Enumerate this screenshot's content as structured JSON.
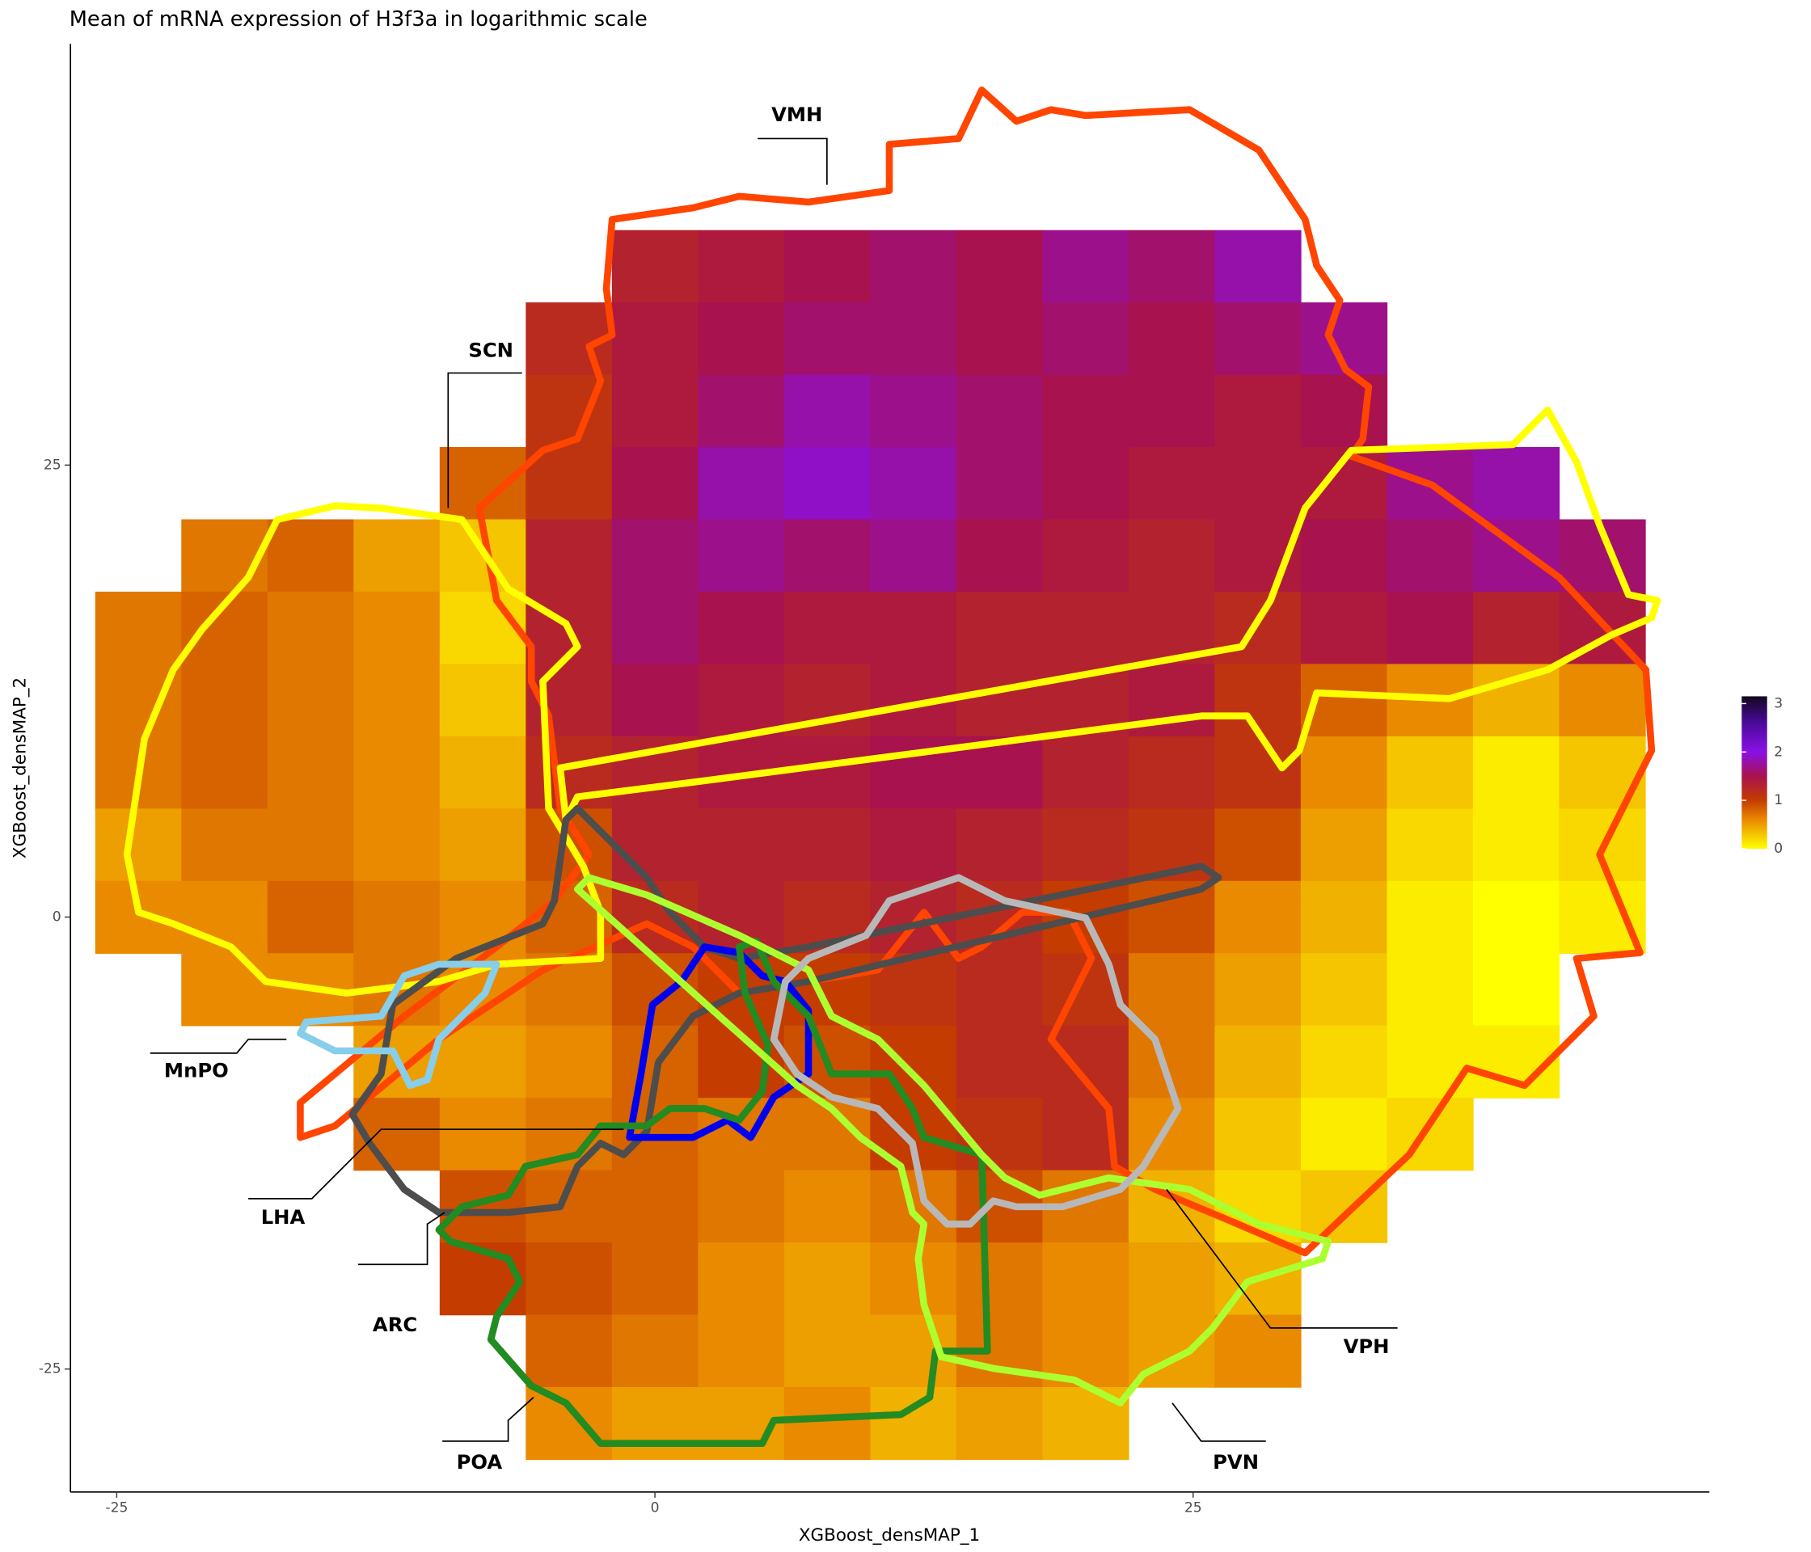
{
  "chart_data": {
    "type": "hexbin",
    "title": "Mean of mRNA expression of H3f3a in logarithmic scale",
    "x_label": "XGBoost_densMAP_1",
    "y_label": "XGBoost_densMAP_2",
    "xlim": [
      -27.15,
      48.98
    ],
    "ylim": [
      -31.8,
      48.3
    ],
    "xticks": [
      -25,
      0,
      25
    ],
    "yticks": [
      -25,
      0,
      25
    ],
    "x": [
      -24,
      -20,
      -16,
      -12,
      -8,
      -4,
      0,
      4,
      8,
      12,
      16,
      20,
      24,
      28,
      32,
      36,
      40,
      44
    ],
    "y": [
      36,
      32,
      28,
      24,
      20,
      16,
      12,
      8,
      4,
      0,
      -4,
      -8,
      -12,
      -16,
      -20,
      -24,
      -28
    ],
    "values": [
      [
        null,
        null,
        null,
        null,
        null,
        null,
        1.3,
        1.4,
        1.5,
        1.6,
        1.5,
        1.7,
        1.6,
        1.8,
        null,
        null,
        null,
        null
      ],
      [
        null,
        null,
        null,
        null,
        null,
        1.2,
        1.4,
        1.5,
        1.6,
        1.6,
        1.5,
        1.6,
        1.5,
        1.6,
        1.7,
        null,
        null,
        null
      ],
      [
        null,
        null,
        null,
        null,
        null,
        1.1,
        1.4,
        1.6,
        1.8,
        1.7,
        1.6,
        1.5,
        1.5,
        1.4,
        1.5,
        null,
        null,
        null
      ],
      [
        null,
        null,
        null,
        null,
        0.8,
        1.1,
        1.5,
        1.8,
        1.9,
        1.8,
        1.6,
        1.5,
        1.4,
        1.4,
        1.4,
        1.7,
        1.8,
        null
      ],
      [
        null,
        0.7,
        0.8,
        0.5,
        0.3,
        1.3,
        1.6,
        1.7,
        1.6,
        1.7,
        1.5,
        1.4,
        1.3,
        1.4,
        1.5,
        1.6,
        1.7,
        1.6
      ],
      [
        0.7,
        0.8,
        0.7,
        0.6,
        0.2,
        1.3,
        1.6,
        1.5,
        1.4,
        1.4,
        1.3,
        1.3,
        1.3,
        1.2,
        1.4,
        1.5,
        1.3,
        1.4
      ],
      [
        0.7,
        0.8,
        0.7,
        0.6,
        0.3,
        1.3,
        1.5,
        1.4,
        1.3,
        1.4,
        1.3,
        1.3,
        1.4,
        1.1,
        0.8,
        0.6,
        0.4,
        0.6
      ],
      [
        0.7,
        0.8,
        0.7,
        0.6,
        0.4,
        1.2,
        1.3,
        1.4,
        1.4,
        1.5,
        1.5,
        1.3,
        1.2,
        1.1,
        0.6,
        0.3,
        0.1,
        0.3
      ],
      [
        0.5,
        0.7,
        0.7,
        0.6,
        0.5,
        0.9,
        1.3,
        1.3,
        1.3,
        1.4,
        1.3,
        1.2,
        1.1,
        0.9,
        0.5,
        0.2,
        0.1,
        0.2
      ],
      [
        0.6,
        0.6,
        0.8,
        0.7,
        0.6,
        0.8,
        1.2,
        1.3,
        1.2,
        1.3,
        1.2,
        1.0,
        0.9,
        0.6,
        0.4,
        0.1,
        0,
        0.1
      ],
      [
        null,
        0.6,
        0.6,
        0.7,
        0.6,
        0.7,
        0.9,
        1.0,
        1.0,
        1.1,
        1.2,
        1.1,
        0.7,
        0.5,
        0.3,
        0.1,
        0,
        null
      ],
      [
        null,
        null,
        null,
        0.5,
        0.5,
        0.6,
        0.8,
        1.0,
        0.9,
        1.0,
        1.2,
        1.2,
        0.7,
        0.4,
        0.2,
        0.1,
        0.1,
        null
      ],
      [
        null,
        null,
        null,
        0.8,
        0.6,
        0.7,
        0.8,
        0.7,
        0.7,
        1.0,
        1.1,
        1.2,
        0.6,
        0.3,
        0.1,
        0.2,
        null,
        null
      ],
      [
        null,
        null,
        null,
        null,
        0.9,
        0.8,
        0.8,
        0.7,
        0.6,
        0.7,
        0.9,
        0.7,
        0.4,
        0.2,
        0.3,
        null,
        null,
        null
      ],
      [
        null,
        null,
        null,
        null,
        1.0,
        0.9,
        0.8,
        0.6,
        0.5,
        0.6,
        0.7,
        0.6,
        0.5,
        0.4,
        null,
        null,
        null,
        null
      ],
      [
        null,
        null,
        null,
        null,
        null,
        0.8,
        0.7,
        0.6,
        0.5,
        0.5,
        0.7,
        0.6,
        0.5,
        0.6,
        null,
        null,
        null,
        null
      ],
      [
        null,
        null,
        null,
        null,
        null,
        0.6,
        0.5,
        0.5,
        0.6,
        0.4,
        0.5,
        0.4,
        null,
        null,
        null,
        null,
        null,
        null
      ]
    ],
    "colorbar": {
      "lim": [
        0,
        3.15
      ],
      "ticks": [
        0,
        1,
        2,
        3
      ],
      "colorscale": [
        [
          0,
          "#ffff00"
        ],
        [
          0.6,
          "#e98a00"
        ],
        [
          1,
          "#c43c00"
        ],
        [
          1.5,
          "#a8124e"
        ],
        [
          2,
          "#8a10e6"
        ],
        [
          2.6,
          "#4a0a9a"
        ],
        [
          3.15,
          "#120820"
        ]
      ]
    },
    "annotations": [
      {
        "text": "VMH",
        "color": "#ff4500"
      },
      {
        "text": "SCN",
        "color": "#ffff00"
      },
      {
        "text": "MnPO",
        "color": "#87ceeb"
      },
      {
        "text": "LHA",
        "color": "#4d4d4d"
      },
      {
        "text": "ARC",
        "color": "#0000ee"
      },
      {
        "text": "POA",
        "color": "#228b22"
      },
      {
        "text": "VPH",
        "color": "#b8b8b8"
      },
      {
        "text": "PVN",
        "color": "#adff2f"
      }
    ]
  }
}
